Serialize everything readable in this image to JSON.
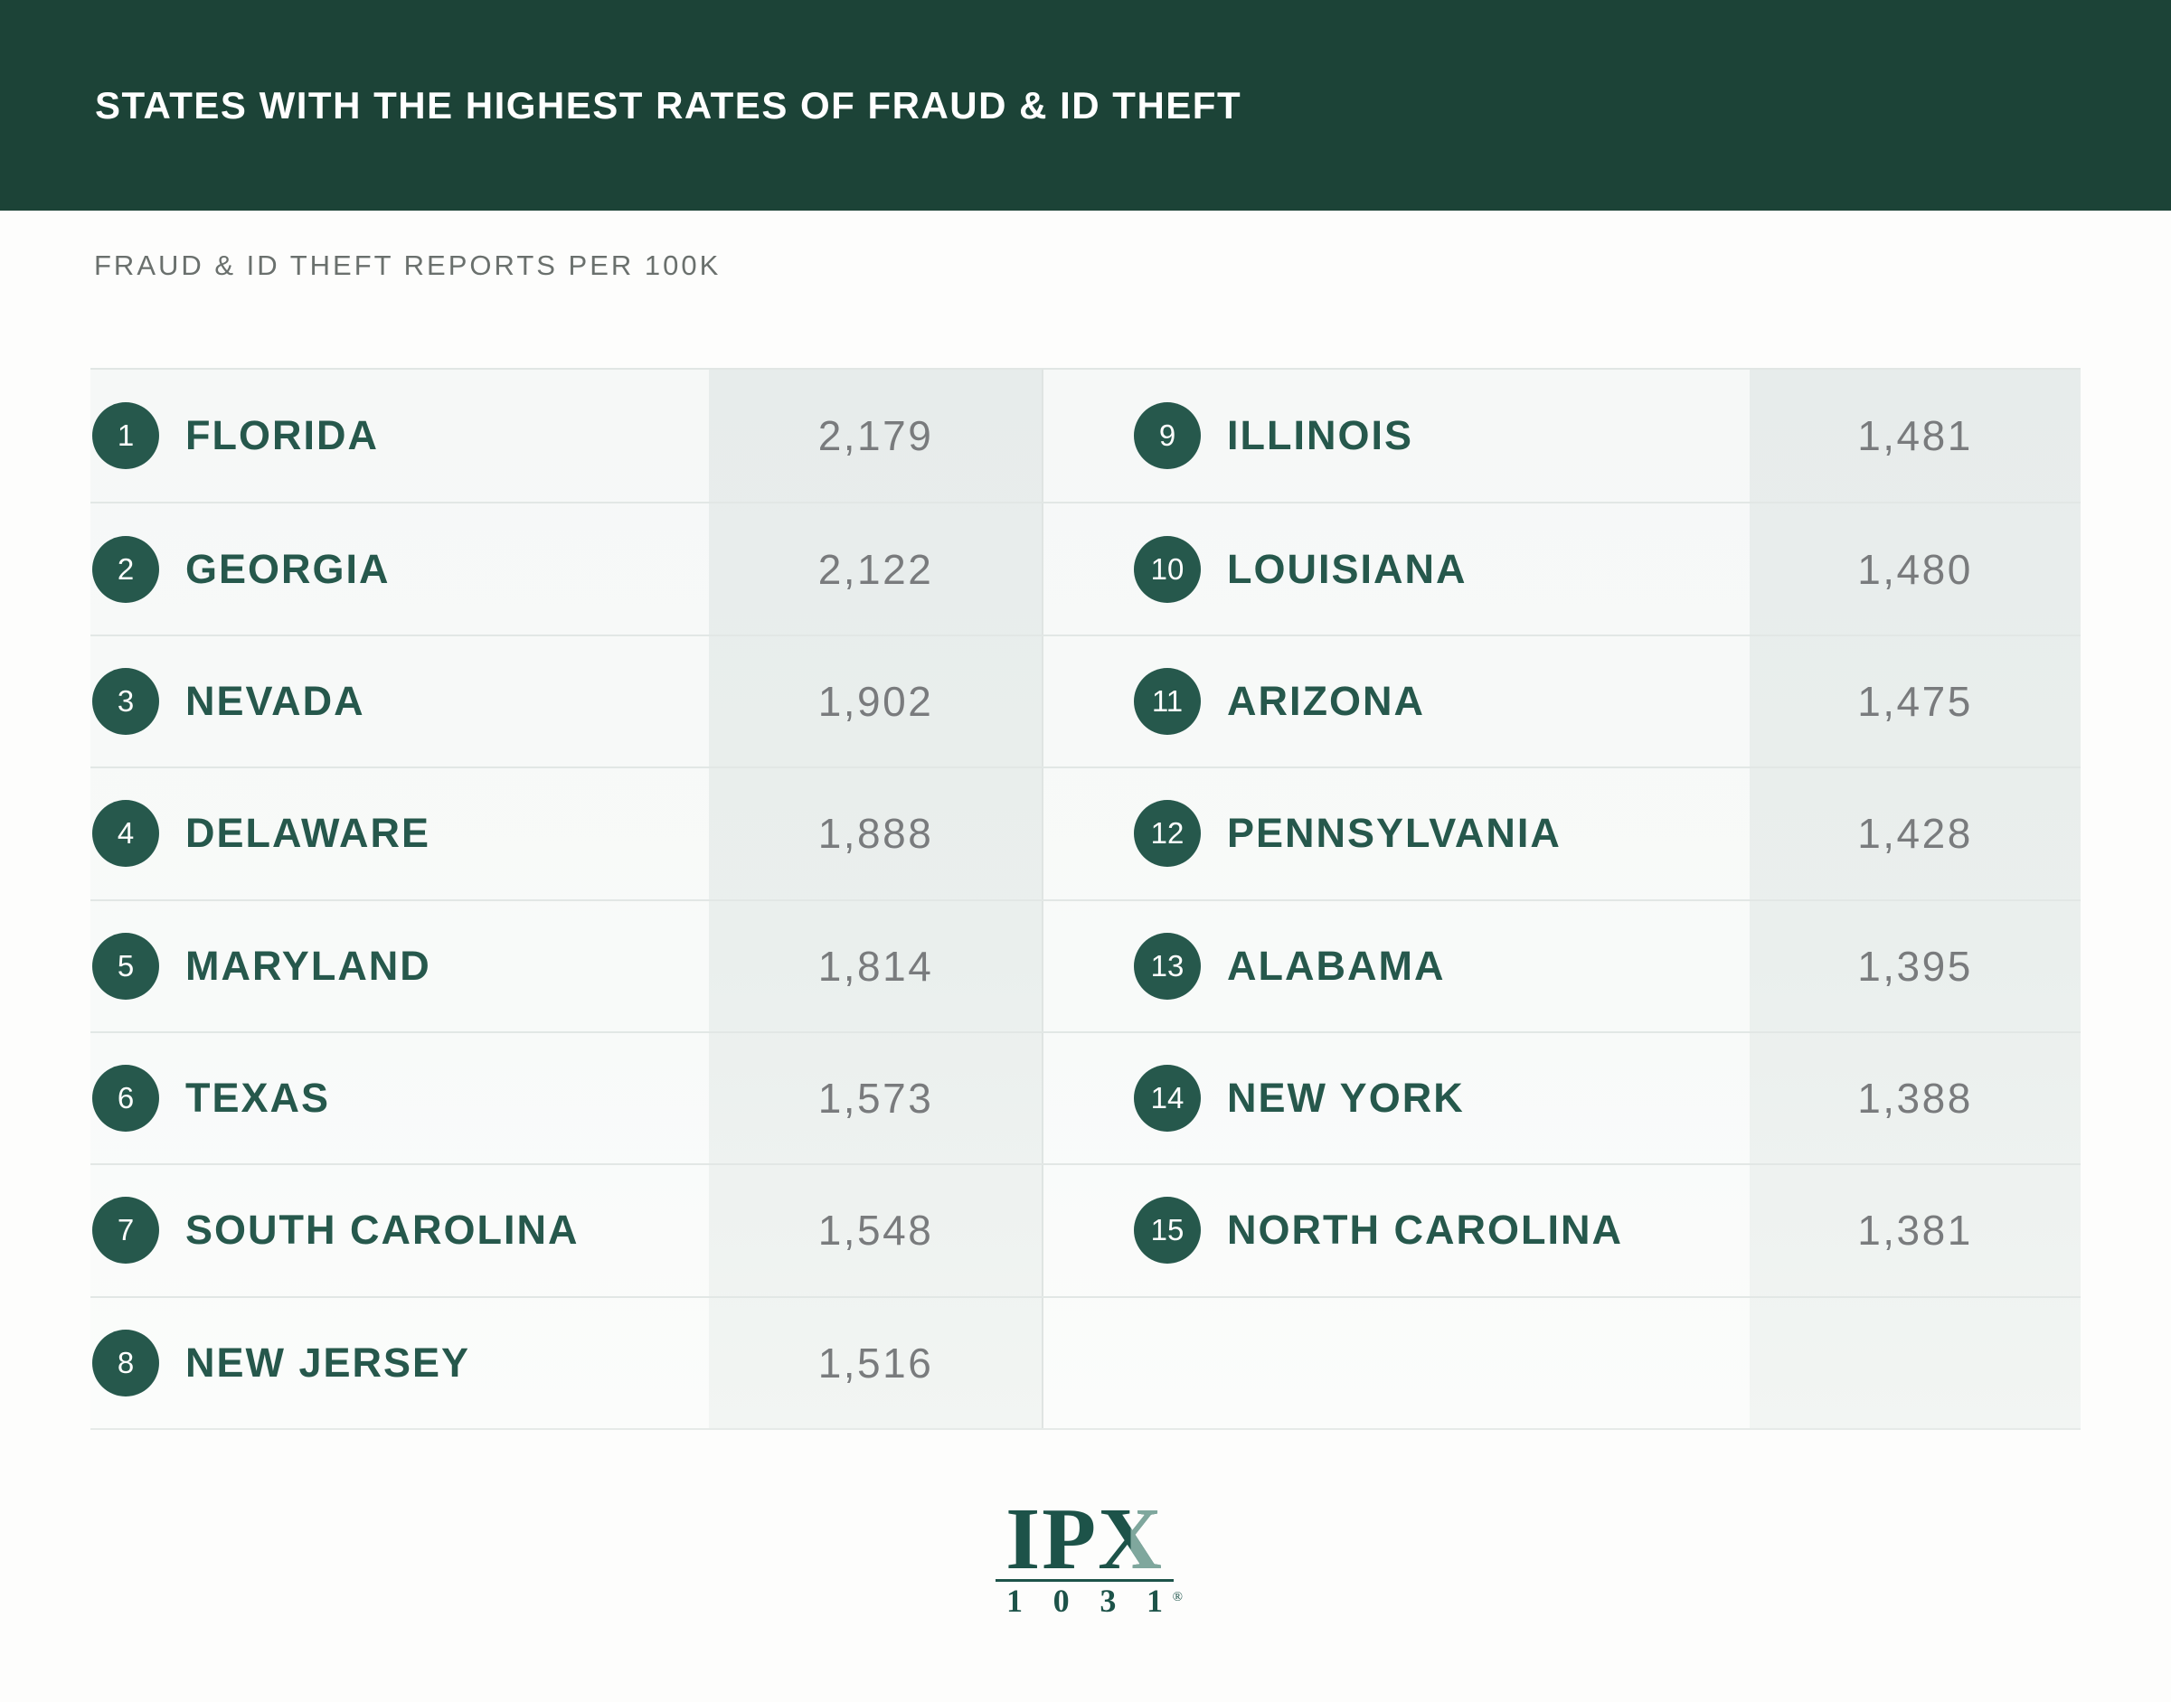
{
  "header": {
    "title": "STATES WITH THE HIGHEST RATES OF FRAUD & ID THEFT"
  },
  "subtitle": "FRAUD & ID THEFT REPORTS PER 100K",
  "chart_data": {
    "type": "table",
    "title": "STATES WITH THE HIGHEST RATES OF FRAUD & ID THEFT",
    "subtitle": "FRAUD & ID THEFT REPORTS PER 100K",
    "metric": "fraud and id theft reports per 100k residents",
    "layout": "two columns: ranks 1-8 left, ranks 9-15 right, right column last row empty",
    "rows": [
      {
        "rank": "1",
        "state": "FLORIDA",
        "value": 2179,
        "value_label": "2,179"
      },
      {
        "rank": "2",
        "state": "GEORGIA",
        "value": 2122,
        "value_label": "2,122"
      },
      {
        "rank": "3",
        "state": "NEVADA",
        "value": 1902,
        "value_label": "1,902"
      },
      {
        "rank": "4",
        "state": "DELAWARE",
        "value": 1888,
        "value_label": "1,888"
      },
      {
        "rank": "5",
        "state": "MARYLAND",
        "value": 1814,
        "value_label": "1,814"
      },
      {
        "rank": "6",
        "state": "TEXAS",
        "value": 1573,
        "value_label": "1,573"
      },
      {
        "rank": "7",
        "state": "SOUTH CAROLINA",
        "value": 1548,
        "value_label": "1,548"
      },
      {
        "rank": "8",
        "state": "NEW JERSEY",
        "value": 1516,
        "value_label": "1,516"
      },
      {
        "rank": "9",
        "state": "ILLINOIS",
        "value": 1481,
        "value_label": "1,481"
      },
      {
        "rank": "10",
        "state": "LOUISIANA",
        "value": 1480,
        "value_label": "1,480"
      },
      {
        "rank": "11",
        "state": "ARIZONA",
        "value": 1475,
        "value_label": "1,475"
      },
      {
        "rank": "12",
        "state": "PENNSYLVANIA",
        "value": 1428,
        "value_label": "1,428"
      },
      {
        "rank": "13",
        "state": "ALABAMA",
        "value": 1395,
        "value_label": "1,395"
      },
      {
        "rank": "14",
        "state": "NEW YORK",
        "value": 1388,
        "value_label": "1,388"
      },
      {
        "rank": "15",
        "state": "NORTH CAROLINA",
        "value": 1381,
        "value_label": "1,381"
      }
    ]
  },
  "logo": {
    "brand_prefix": "IP",
    "brand_x": "X",
    "digits": [
      "1",
      "0",
      "3",
      "1"
    ],
    "registered": "®"
  },
  "colors": {
    "header_bg": "#1c4337",
    "accent_green": "#26584c",
    "band_bg": "#e9eeec",
    "row_bg": "#f7f9f8",
    "value_gray": "#797b7d",
    "divider": "#dfe4e2",
    "logo_green": "#1d5349",
    "logo_light_green": "#7fa79d"
  }
}
